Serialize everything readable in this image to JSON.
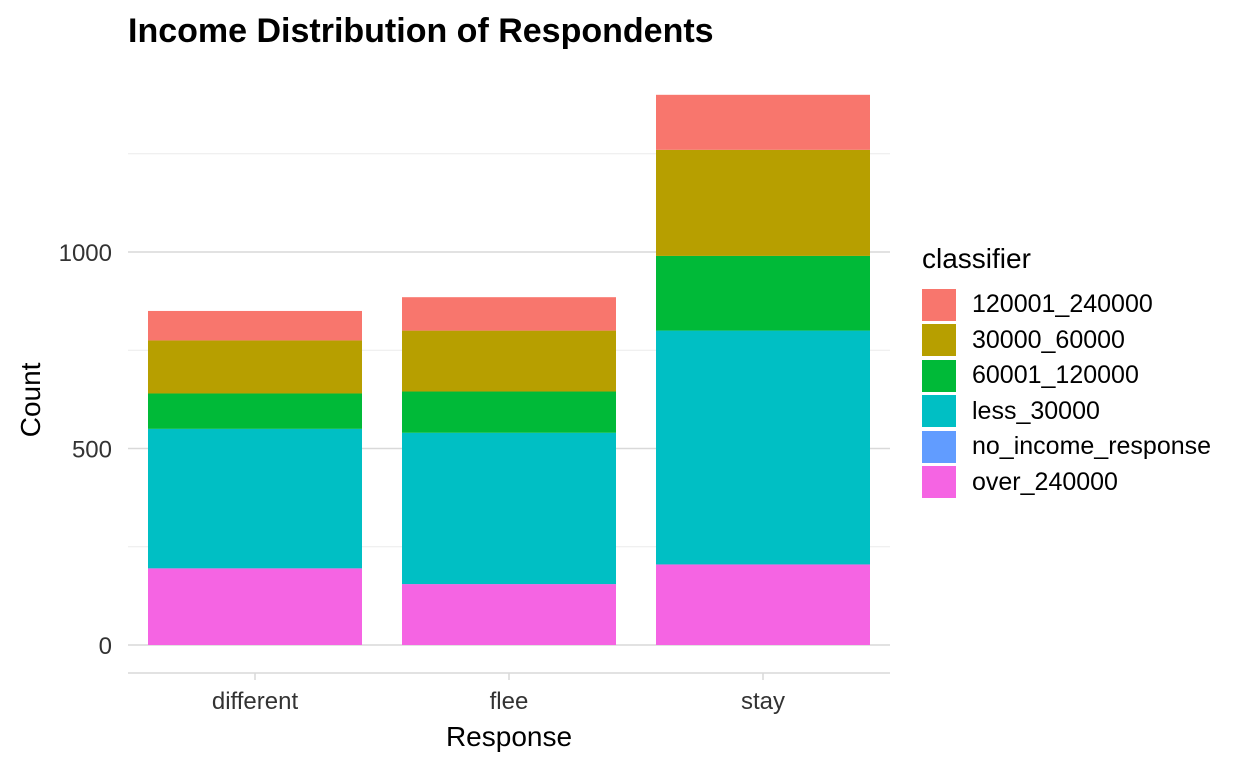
{
  "chart_data": {
    "type": "bar",
    "stacked": true,
    "title": "Income Distribution of Respondents",
    "xlabel": "Response",
    "ylabel": "Count",
    "categories": [
      "different",
      "flee",
      "stay"
    ],
    "ylim": [
      0,
      1400
    ],
    "yticks": [
      0,
      500,
      1000
    ],
    "grid": true,
    "legend_title": "classifier",
    "legend_position": "right",
    "series": [
      {
        "name": "120001_240000",
        "color": "#F8766D",
        "values": [
          75,
          85,
          140
        ]
      },
      {
        "name": "30000_60000",
        "color": "#B79F00",
        "values": [
          135,
          155,
          270
        ]
      },
      {
        "name": "60001_120000",
        "color": "#00BA38",
        "values": [
          90,
          105,
          190
        ]
      },
      {
        "name": "less_30000",
        "color": "#00BFC4",
        "values": [
          355,
          385,
          595
        ]
      },
      {
        "name": "no_income_response",
        "color": "#619CFF",
        "values": [
          0,
          0,
          0
        ]
      },
      {
        "name": "over_240000",
        "color": "#F564E3",
        "values": [
          195,
          155,
          205
        ]
      }
    ]
  }
}
